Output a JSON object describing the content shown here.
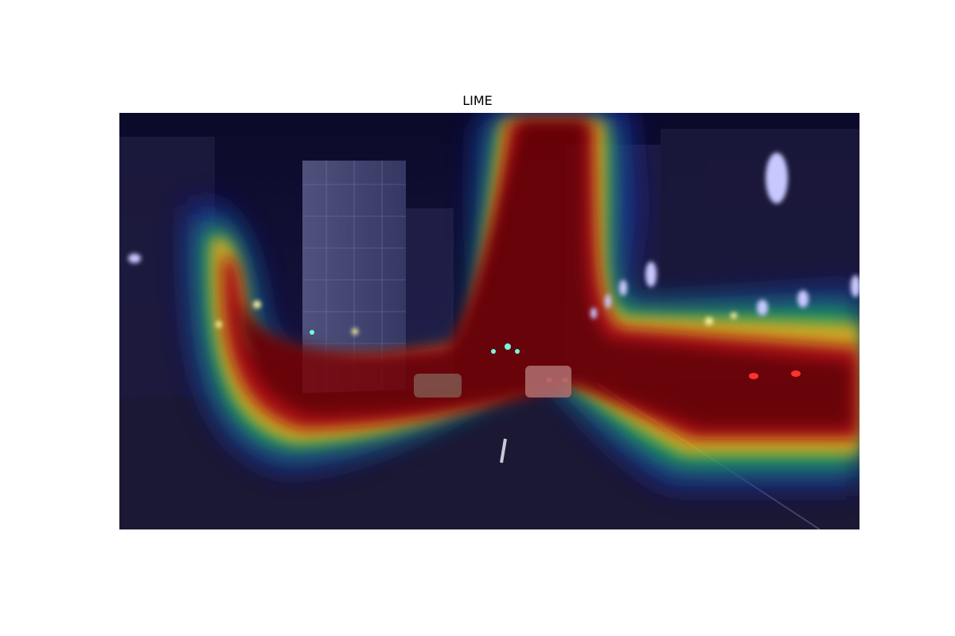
{
  "figure": {
    "title": "LIME"
  },
  "image": {
    "description_icon": "heatmap-overlay-icon",
    "colormap": "jet",
    "colors": {
      "background_dark": "#14112e",
      "hot": "#8b0000",
      "warm": "#ffcc00",
      "mid": "#00cc66",
      "cool": "#1a1aa8"
    }
  }
}
